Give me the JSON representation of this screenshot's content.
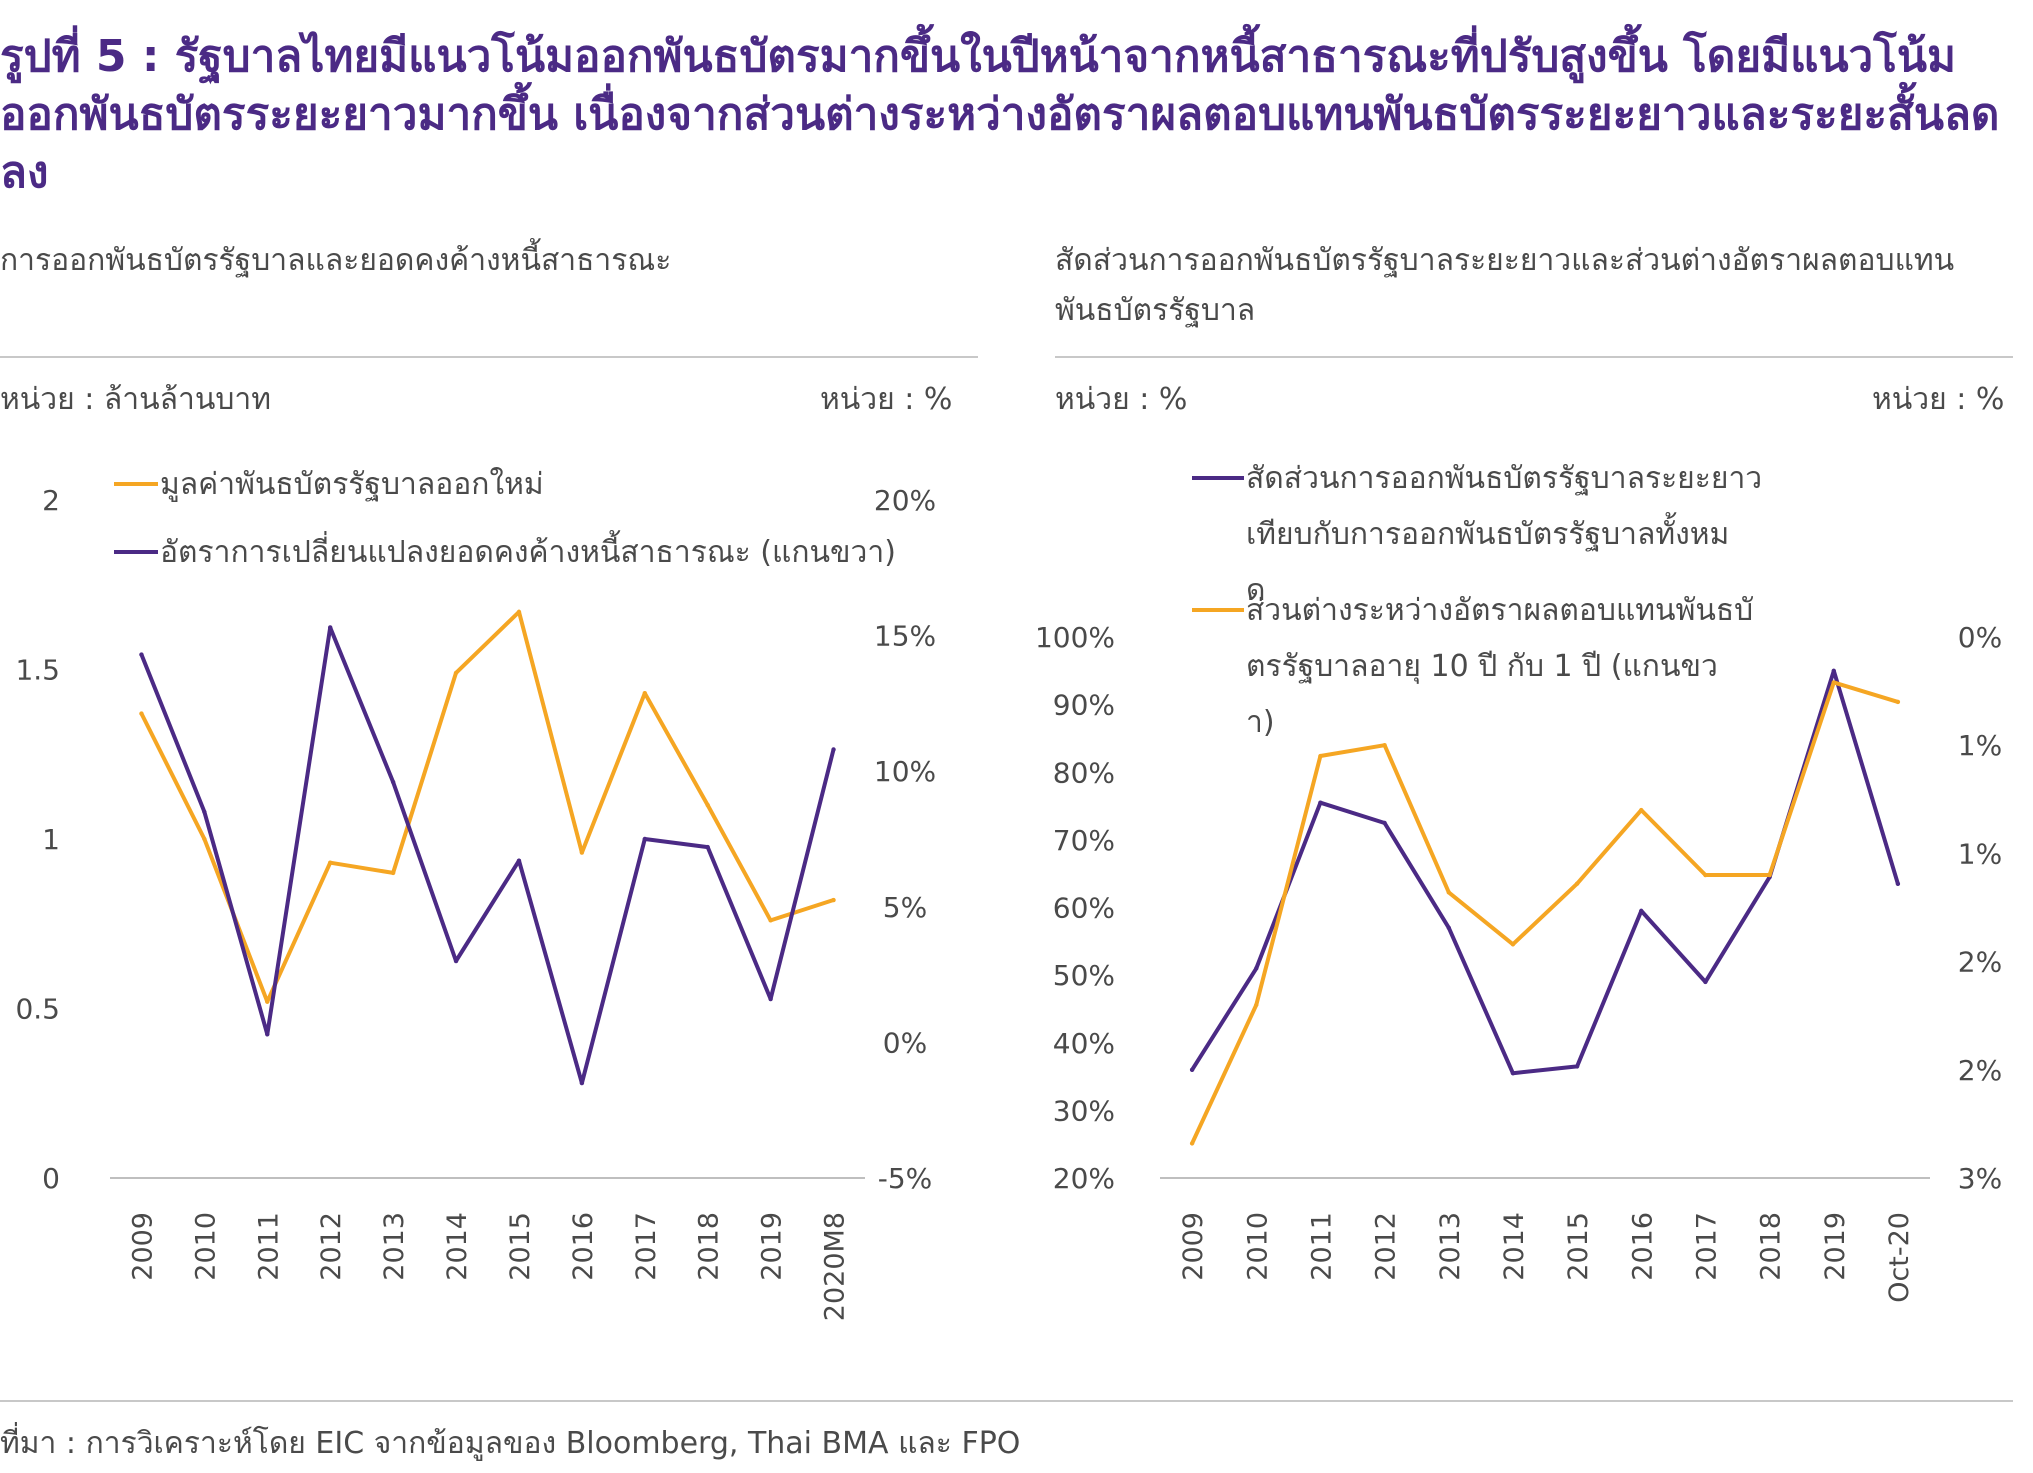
{
  "figure": {
    "title": "รูปที่ 5 : รัฐบาลไทยมีแนวโน้มออกพันธบัตรมากขึ้นในปีหน้าจากหนี้สาธารณะที่ปรับสูงขึ้น โดยมีแนวโน้มออกพันธบัตรระยะยาวมากขึ้น เนื่องจากส่วนต่างระหว่างอัตราผลตอบแทนพันธบัตรระยะยาวและระยะสั้นลดลง",
    "source": "ที่มา : การวิเคราะห์โดย EIC จากข้อมูลของ Bloomberg, Thai BMA และ FPO"
  },
  "left_panel": {
    "subtitle": "การออกพันธบัตรรัฐบาลและยอดคงค้างหนี้สาธารณะ",
    "unit_left": "หน่วย : ล้านล้านบาท",
    "unit_right": "หน่วย : %"
  },
  "right_panel": {
    "subtitle": "สัดส่วนการออกพันธบัตรรัฐบาลระยะยาวและส่วนต่างอัตราผลตอบแทนพันธบัตรรัฐบาล",
    "unit_left": "หน่วย : %",
    "unit_right": "หน่วย : %"
  },
  "colors": {
    "orange": "#f5a623",
    "purple": "#4b2a85",
    "axis": "#bfbfbf",
    "text": "#4a4a4a"
  },
  "chart_data": [
    {
      "type": "line",
      "categories": [
        "2009",
        "2010",
        "2011",
        "2012",
        "2013",
        "2014",
        "2015",
        "2016",
        "2017",
        "2018",
        "2019",
        "2020M8"
      ],
      "ylim": [
        0,
        2
      ],
      "yticks": [
        "0",
        "0.5",
        "1",
        "1.5",
        "2"
      ],
      "y2lim": [
        -5,
        20
      ],
      "y2ticks": [
        "-5%",
        "0%",
        "5%",
        "10%",
        "15%",
        "20%"
      ],
      "legend": "top-left",
      "grid": false,
      "series": [
        {
          "name": "มูลค่าพันธบัตรรัฐบาลออกใหม่",
          "axis": "left",
          "color": "#f5a623",
          "values": [
            1.37,
            1.0,
            0.52,
            0.93,
            0.9,
            1.49,
            1.67,
            0.96,
            1.43,
            1.1,
            0.76,
            0.82
          ]
        },
        {
          "name": "อัตราการเปลี่ยนแปลงยอดคงค้างหนี้สาธารณะ (แกนขวา)",
          "axis": "right",
          "color": "#4b2a85",
          "values": [
            14.3,
            8.5,
            0.3,
            15.3,
            9.6,
            3.0,
            6.7,
            -1.5,
            7.5,
            7.2,
            1.6,
            10.8
          ]
        }
      ]
    },
    {
      "type": "line",
      "categories": [
        "2009",
        "2010",
        "2011",
        "2012",
        "2013",
        "2014",
        "2015",
        "2016",
        "2017",
        "2018",
        "2019",
        "Oct-20"
      ],
      "ylim": [
        20,
        100
      ],
      "yticks": [
        "20%",
        "30%",
        "40%",
        "50%",
        "60%",
        "70%",
        "80%",
        "90%",
        "100%"
      ],
      "y2lim": [
        0,
        2.5
      ],
      "y2_inverted": true,
      "y2ticks": [
        "0%",
        "1%",
        "1%",
        "2%",
        "2%",
        "3%"
      ],
      "legend": "top-left",
      "grid": false,
      "series": [
        {
          "name": "สัดส่วนการออกพันธบัตรรัฐบาลระยะยาวเทียบกับการออกพันธบัตรรัฐบาลทั้งหมด",
          "axis": "left",
          "color": "#4b2a85",
          "values": [
            36,
            51,
            75.5,
            72.5,
            57,
            35.5,
            36.5,
            59.5,
            49,
            64.5,
            95,
            63.5
          ]
        },
        {
          "name": "ส่วนต่างระหว่างอัตราผลตอบแทนพันธบัตรรัฐบาลอายุ 10 ปี กับ 1 ปี (แกนขวา)",
          "axis": "right",
          "color": "#f5a623",
          "values": [
            2.34,
            1.7,
            0.55,
            0.5,
            1.18,
            1.42,
            1.14,
            0.8,
            1.1,
            1.1,
            0.21,
            0.3
          ]
        }
      ]
    }
  ]
}
